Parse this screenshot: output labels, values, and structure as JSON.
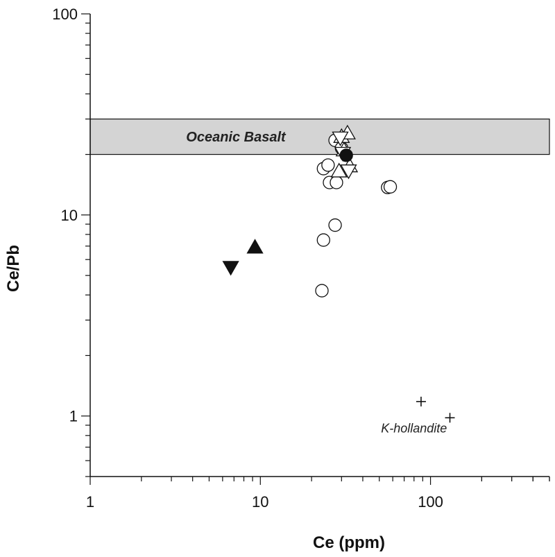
{
  "chart_data": {
    "type": "scatter",
    "title": "",
    "xlabel": "Ce (ppm)",
    "ylabel": "Ce/Pb",
    "xscale": "log",
    "yscale": "log",
    "xlim": [
      1,
      500
    ],
    "ylim": [
      0.5,
      100
    ],
    "grid": false,
    "x_tick_labels": [
      {
        "value": 1,
        "label": "1"
      },
      {
        "value": 10,
        "label": "10"
      },
      {
        "value": 100,
        "label": "100"
      }
    ],
    "y_tick_labels": [
      {
        "value": 1,
        "label": "1"
      },
      {
        "value": 10,
        "label": "10"
      },
      {
        "value": 100,
        "label": "100"
      }
    ],
    "bands": [
      {
        "name": "oceanic-basalt",
        "label": "Oceanic Basalt",
        "y_from": 20,
        "y_to": 30,
        "color": "#d4d4d4"
      }
    ],
    "annotations": [
      {
        "name": "k-hollandite",
        "text": "K-hollandite",
        "x": 80,
        "y": 0.87
      }
    ],
    "series": [
      {
        "name": "open circles",
        "marker": "circle-open",
        "points": [
          [
            23.5,
            17
          ],
          [
            25,
            17.7
          ],
          [
            25.5,
            14.5
          ],
          [
            28,
            14.5
          ],
          [
            27.5,
            23.5
          ],
          [
            30,
            21.5
          ],
          [
            56,
            13.7
          ],
          [
            58,
            13.8
          ],
          [
            27.5,
            8.9
          ],
          [
            23.5,
            7.5
          ],
          [
            23,
            4.2
          ]
        ]
      },
      {
        "name": "open triangles up",
        "marker": "triangle-up-open",
        "points": [
          [
            30,
            24.5
          ],
          [
            32.5,
            25.5
          ],
          [
            31,
            21
          ],
          [
            33.5,
            17.5
          ],
          [
            29,
            16.5
          ]
        ]
      },
      {
        "name": "open triangles down",
        "marker": "triangle-down-open",
        "points": [
          [
            29.5,
            24.2
          ],
          [
            30.5,
            20.3
          ],
          [
            33,
            16.6
          ]
        ]
      },
      {
        "name": "filled circle",
        "marker": "circle-filled",
        "points": [
          [
            32,
            19.8
          ]
        ]
      },
      {
        "name": "filled triangle up",
        "marker": "triangle-up-filled",
        "points": [
          [
            9.3,
            6.9
          ]
        ]
      },
      {
        "name": "filled triangle down",
        "marker": "triangle-down-filled",
        "points": [
          [
            6.7,
            5.5
          ]
        ]
      },
      {
        "name": "K-hollandite",
        "marker": "plus",
        "points": [
          [
            88,
            1.18
          ],
          [
            130,
            0.98
          ]
        ]
      }
    ],
    "colors": {
      "ink": "#111111",
      "band": "#d4d4d4",
      "background": "#ffffff"
    }
  }
}
